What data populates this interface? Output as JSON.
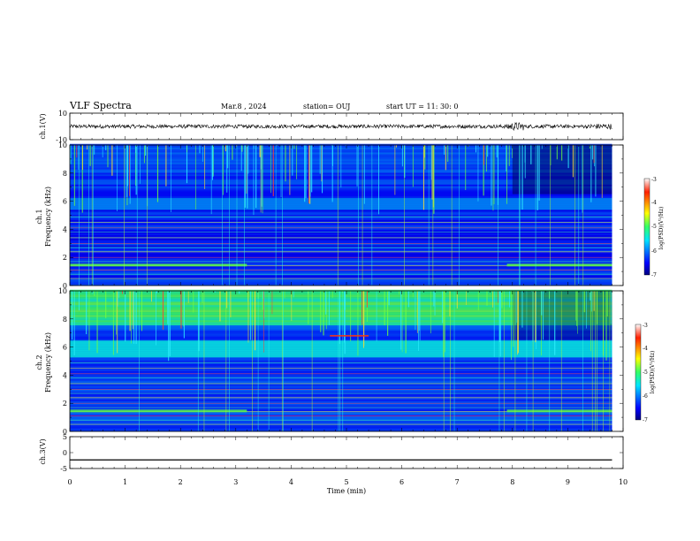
{
  "header": {
    "title": "VLF Spectra",
    "date": "Mar.8 , 2024",
    "station": "station= OUJ",
    "start": "start UT = 11: 30: 0"
  },
  "chart_data": [
    {
      "type": "line",
      "name": "ch1-waveform",
      "ylabel": "ch.1(V)",
      "ylim": [
        -10,
        10
      ],
      "yticks": [
        "10",
        "-10"
      ],
      "xlim": [
        0,
        10
      ],
      "baseline": 0,
      "noise_amplitude": 1.4
    },
    {
      "type": "heatmap",
      "name": "ch1-spectrogram",
      "ylabel_top": "ch.1",
      "ylabel": "Frequency (kHz)",
      "ylim": [
        0,
        10
      ],
      "yticks": [
        "0",
        "2",
        "4",
        "6",
        "8",
        "10"
      ],
      "xlim": [
        0,
        9.8
      ],
      "colorbar": {
        "label": "log(PSD)(V²/Hz)",
        "range": [
          -7,
          -3
        ],
        "ticks": [
          "-3",
          "-4",
          "-5",
          "-6",
          "-7"
        ]
      }
    },
    {
      "type": "heatmap",
      "name": "ch2-spectrogram",
      "ylabel_top": "ch.2",
      "ylabel": "Frequency (kHz)",
      "ylim": [
        0,
        10
      ],
      "yticks": [
        "0",
        "2",
        "4",
        "6",
        "8",
        "10"
      ],
      "xlim": [
        0,
        9.8
      ],
      "colorbar": {
        "label": "log(PSD)(V²/Hz)",
        "range": [
          -7,
          -3
        ],
        "ticks": [
          "-3",
          "-4",
          "-5",
          "-6",
          "-7"
        ]
      }
    },
    {
      "type": "line",
      "name": "ch3-waveform",
      "ylabel": "ch.3(V)",
      "ylim": [
        -5,
        5
      ],
      "yticks": [
        "5",
        "0",
        "-5"
      ],
      "xlim": [
        0,
        10
      ],
      "baseline": -2.3
    }
  ],
  "xaxis": {
    "label": "Time (min)",
    "ticks": [
      "0",
      "1",
      "2",
      "3",
      "4",
      "5",
      "6",
      "7",
      "8",
      "9",
      "10"
    ],
    "range": [
      0,
      10
    ]
  },
  "colors": {
    "waveform": "#000000",
    "background": "#ffffff"
  }
}
